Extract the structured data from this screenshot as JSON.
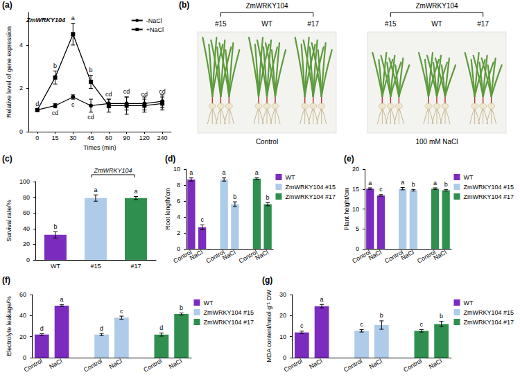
{
  "chart_data": [
    {
      "panel": "(a)",
      "type": "line",
      "title": "ZmWRKY104",
      "x_label": "Times (min)",
      "y_label": "Relative level of gene expression",
      "categories": [
        "0",
        "15",
        "30",
        "45",
        "60",
        "90",
        "120",
        "240"
      ],
      "ylim": [
        0,
        5.5
      ],
      "yticks": [
        0,
        2,
        4
      ],
      "grid": false,
      "legend": "top-right",
      "series": [
        {
          "name": "-NaCl",
          "color": "#000000",
          "marker": "circle",
          "values": [
            1.0,
            1.2,
            1.6,
            1.2,
            1.3,
            1.3,
            1.3,
            1.4
          ],
          "errors": [
            0.05,
            0.1,
            0.1,
            0.3,
            0.2,
            0.3,
            0.3,
            0.3
          ],
          "letters": [
            null,
            "cd",
            "c",
            "cd",
            null,
            null,
            null,
            null
          ]
        },
        {
          "name": "+NaCl",
          "color": "#000000",
          "marker": "square",
          "values": [
            1.0,
            2.5,
            4.5,
            2.3,
            1.2,
            1.2,
            1.2,
            1.3
          ],
          "errors": [
            0.05,
            0.3,
            0.5,
            0.3,
            0.3,
            0.4,
            0.3,
            0.3
          ],
          "letters": [
            "d",
            "b",
            "a",
            "b",
            "cd",
            "cd",
            "cd",
            "cd"
          ]
        }
      ]
    },
    {
      "panel": "(c)",
      "type": "bar",
      "y_label": "Survival rate/%",
      "categories": [
        "WT",
        "#15",
        "#17"
      ],
      "values": [
        32,
        79,
        79
      ],
      "errors": [
        4,
        4,
        2
      ],
      "letters": [
        "b",
        "a",
        "a"
      ],
      "colors": [
        "#7b2cbf",
        "#aecbea",
        "#2f8f4f"
      ],
      "ylim": [
        0,
        100
      ],
      "yticks": [
        0,
        20,
        40,
        60,
        80,
        100
      ],
      "grid": false,
      "annotations": [
        {
          "text": "ZmWRKY104",
          "categories": [
            "#15",
            "#17"
          ]
        }
      ]
    },
    {
      "panel": "(d)",
      "type": "bar",
      "y_label": "Root length/cm",
      "categories": [
        "Control",
        "NaCl",
        null,
        "Control",
        "NaCl",
        null,
        "Control",
        "NaCl"
      ],
      "ylim": [
        0,
        10
      ],
      "yticks": [
        0,
        2,
        4,
        6,
        8,
        10
      ],
      "grid": false,
      "legend": "right",
      "series": [
        {
          "name": "WT",
          "color": "#7b2cbf",
          "values": [
            8.7,
            2.7,
            null,
            null,
            null,
            null,
            null,
            null
          ],
          "errors": [
            0.2,
            0.3,
            null,
            null,
            null,
            null,
            null,
            null
          ],
          "letters": [
            "a",
            "c",
            null,
            null,
            null,
            null,
            null,
            null
          ]
        },
        {
          "name": "ZmWRKY104 #15",
          "color": "#aecbea",
          "values": [
            null,
            null,
            null,
            8.7,
            5.6,
            null,
            null,
            null
          ],
          "errors": [
            null,
            null,
            null,
            0.2,
            0.3,
            null,
            null,
            null
          ],
          "letters": [
            null,
            null,
            null,
            "a",
            "b",
            null,
            null,
            null
          ]
        },
        {
          "name": "ZmWRKY104 #17",
          "color": "#2f8f4f",
          "values": [
            null,
            null,
            null,
            null,
            null,
            null,
            8.8,
            5.6
          ],
          "errors": [
            null,
            null,
            null,
            null,
            null,
            null,
            0.1,
            0.2
          ],
          "letters": [
            null,
            null,
            null,
            null,
            null,
            null,
            "a",
            "b"
          ]
        }
      ]
    },
    {
      "panel": "(e)",
      "type": "bar",
      "y_label": "Plant height/cm",
      "categories": [
        "Control",
        "NaCl",
        null,
        "Control",
        "NaCl",
        null,
        "Control",
        "NaCl"
      ],
      "ylim": [
        0,
        20
      ],
      "yticks": [
        0,
        5,
        10,
        15,
        20
      ],
      "grid": false,
      "legend": "right",
      "series": [
        {
          "name": "WT",
          "color": "#7b2cbf",
          "values": [
            15.1,
            13.4,
            null,
            null,
            null,
            null,
            null,
            null
          ],
          "errors": [
            0.2,
            0.2,
            null,
            null,
            null,
            null,
            null,
            null
          ],
          "letters": [
            "a",
            "c",
            null,
            null,
            null,
            null,
            null,
            null
          ]
        },
        {
          "name": "ZmWRKY104 #15",
          "color": "#aecbea",
          "values": [
            null,
            null,
            null,
            15.1,
            14.7,
            null,
            null,
            null
          ],
          "errors": [
            null,
            null,
            null,
            0.3,
            0.2,
            null,
            null,
            null
          ],
          "letters": [
            null,
            null,
            null,
            "a",
            "b",
            null,
            null,
            null
          ]
        },
        {
          "name": "ZmWRKY104 #17",
          "color": "#2f8f4f",
          "values": [
            null,
            null,
            null,
            null,
            null,
            null,
            15.1,
            14.7
          ],
          "errors": [
            null,
            null,
            null,
            null,
            null,
            null,
            0.2,
            0.2
          ],
          "letters": [
            null,
            null,
            null,
            null,
            null,
            null,
            "a",
            "b"
          ]
        }
      ]
    },
    {
      "panel": "(f)",
      "type": "bar",
      "y_label": "Electrolyte leakage/%",
      "categories": [
        "Control",
        "NaCl",
        null,
        "Control",
        "NaCl",
        null,
        "Control",
        "NaCl"
      ],
      "ylim": [
        0,
        60
      ],
      "yticks": [
        0,
        20,
        40,
        60
      ],
      "grid": false,
      "legend": "right",
      "series": [
        {
          "name": "WT",
          "color": "#7b2cbf",
          "values": [
            22,
            49.5,
            null,
            null,
            null,
            null,
            null,
            null
          ],
          "errors": [
            0.8,
            0.8,
            null,
            null,
            null,
            null,
            null,
            null
          ],
          "letters": [
            "d",
            "a",
            null,
            null,
            null,
            null,
            null,
            null
          ]
        },
        {
          "name": "ZmWRKY104 #15",
          "color": "#aecbea",
          "values": [
            null,
            null,
            null,
            22,
            38,
            null,
            null,
            null
          ],
          "errors": [
            null,
            null,
            null,
            1,
            1.5,
            null,
            null,
            null
          ],
          "letters": [
            null,
            null,
            null,
            "d",
            "c",
            null,
            null,
            null
          ]
        },
        {
          "name": "ZmWRKY104 #17",
          "color": "#2f8f4f",
          "values": [
            null,
            null,
            null,
            null,
            null,
            null,
            22,
            41.5
          ],
          "errors": [
            null,
            null,
            null,
            null,
            null,
            null,
            1.5,
            1
          ],
          "letters": [
            null,
            null,
            null,
            null,
            null,
            null,
            "d",
            "b"
          ]
        }
      ]
    },
    {
      "panel": "(g)",
      "type": "bar",
      "y_label": "MDA content/nmol g⁻¹ DW",
      "categories": [
        "Control",
        "NaCl",
        null,
        "Control",
        "NaCl",
        null,
        "Control",
        "NaCl"
      ],
      "ylim": [
        0,
        30
      ],
      "yticks": [
        0,
        10,
        20,
        30
      ],
      "grid": false,
      "legend": "right",
      "series": [
        {
          "name": "WT",
          "color": "#7b2cbf",
          "values": [
            12,
            24.5,
            null,
            null,
            null,
            null,
            null,
            null
          ],
          "errors": [
            0.6,
            0.8,
            null,
            null,
            null,
            null,
            null,
            null
          ],
          "letters": [
            "c",
            "a",
            null,
            null,
            null,
            null,
            null,
            null
          ]
        },
        {
          "name": "ZmWRKY104 #15",
          "color": "#aecbea",
          "values": [
            null,
            null,
            null,
            12.8,
            15.5,
            null,
            null,
            null
          ],
          "errors": [
            null,
            null,
            null,
            0.6,
            2,
            null,
            null,
            null
          ],
          "letters": [
            null,
            null,
            null,
            "c",
            "b",
            null,
            null,
            null
          ]
        },
        {
          "name": "ZmWRKY104 #17",
          "color": "#2f8f4f",
          "values": [
            null,
            null,
            null,
            null,
            null,
            null,
            12.8,
            16
          ],
          "errors": [
            null,
            null,
            null,
            null,
            null,
            null,
            0.6,
            1.2
          ],
          "letters": [
            null,
            null,
            null,
            null,
            null,
            null,
            "c",
            "b"
          ]
        }
      ]
    }
  ],
  "panel_b": {
    "panel": "(b)",
    "photos": [
      {
        "group": "ZmWRKY104",
        "lines": [
          "#15",
          "WT",
          "#17"
        ],
        "condition": "Control"
      },
      {
        "group": "ZmWRKY104",
        "lines": [
          "#15",
          "WT",
          "#17"
        ],
        "condition": "100 mM NaCl"
      }
    ]
  }
}
